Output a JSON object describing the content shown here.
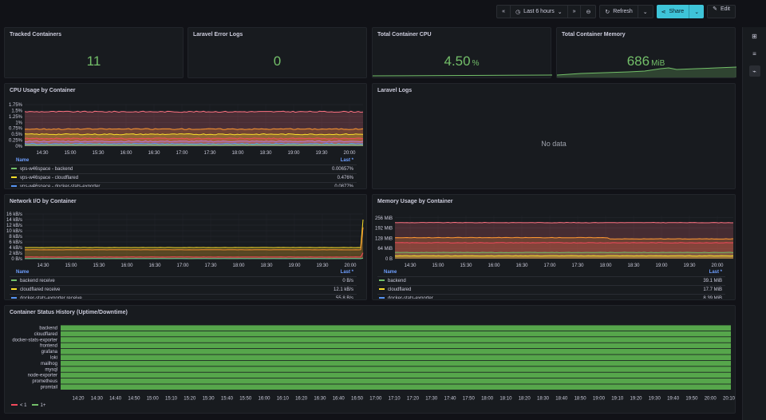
{
  "toolbar": {
    "time_range": "Last 6 hours",
    "refresh": "Refresh",
    "share": "Share",
    "edit": "Edit"
  },
  "stats": {
    "tracked": {
      "title": "Tracked Containers",
      "value": "11",
      "unit": ""
    },
    "errors": {
      "title": "Laravel Error Logs",
      "value": "0",
      "unit": ""
    },
    "cpu": {
      "title": "Total Container CPU",
      "value": "4.50",
      "unit": "%"
    },
    "memory": {
      "title": "Total Container Memory",
      "value": "686",
      "unit": "MiB"
    }
  },
  "panels": {
    "cpu_usage": {
      "title": "CPU Usage by Container",
      "legend_name": "Name",
      "legend_last": "Last *",
      "legend": [
        {
          "name": "vps-w46space - backend",
          "value": "0.00657%",
          "color": "#73bf69"
        },
        {
          "name": "vps-w46space - cloudflared",
          "value": "0.476%",
          "color": "#fade2a"
        },
        {
          "name": "vps-w46space - docker-stats-exporter",
          "value": "0.0877%",
          "color": "#5794f2"
        }
      ]
    },
    "laravel_logs": {
      "title": "Laravel Logs",
      "nodata": "No data"
    },
    "network": {
      "title": "Network I/O by Container",
      "legend_name": "Name",
      "legend_last": "Last *",
      "legend": [
        {
          "name": "backend receive",
          "value": "0 B/s",
          "color": "#73bf69"
        },
        {
          "name": "cloudflared receive",
          "value": "12.1 kB/s",
          "color": "#fade2a"
        },
        {
          "name": "docker-stats-exporter receive",
          "value": "55.8 B/s",
          "color": "#5794f2"
        }
      ]
    },
    "memory_usage": {
      "title": "Memory Usage by Container",
      "legend_name": "Name",
      "legend_last": "Last *",
      "legend": [
        {
          "name": "backend",
          "value": "39.1 MiB",
          "color": "#73bf69"
        },
        {
          "name": "cloudflared",
          "value": "17.7 MiB",
          "color": "#fade2a"
        },
        {
          "name": "docker-stats-exporter",
          "value": "8.39 MiB",
          "color": "#5794f2"
        }
      ]
    },
    "status_history": {
      "title": "Container Status History (Uptime/Downtime)",
      "legend_lt1": "< 1",
      "legend_ge1": "1+",
      "rows": [
        "backend",
        "cloudflared",
        "docker-stats-exporter",
        "frontend",
        "grafana",
        "loki",
        "mailhog",
        "mysql",
        "node-exporter",
        "prometheus",
        "promtail"
      ]
    }
  },
  "chart_data": [
    {
      "type": "line",
      "title": "CPU Usage by Container",
      "x": [
        "14:30",
        "15:00",
        "15:30",
        "16:00",
        "16:30",
        "17:00",
        "17:30",
        "18:00",
        "18:30",
        "19:00",
        "19:30",
        "20:00"
      ],
      "y_ticks": [
        "0%",
        "0.25%",
        "0.5%",
        "0.75%",
        "1%",
        "1.25%",
        "1.5%",
        "1.75%"
      ],
      "ylim": [
        0,
        1.75
      ],
      "series": [
        {
          "name": "vps-w46space - backend",
          "color": "#73bf69",
          "level": 0.05
        },
        {
          "name": "vps-w46space - cloudflared",
          "color": "#fade2a",
          "level": 0.5
        },
        {
          "name": "vps-w46space - docker-stats-exporter",
          "color": "#5794f2",
          "level": 0.1
        },
        {
          "color": "#ff7383",
          "level": 1.45
        },
        {
          "color": "#ff9830",
          "level": 0.72
        },
        {
          "color": "#f2495c",
          "level": 0.32
        },
        {
          "color": "#b877d9",
          "level": 0.2
        }
      ]
    },
    {
      "type": "line",
      "title": "Network I/O by Container",
      "x": [
        "14:30",
        "15:00",
        "15:30",
        "16:00",
        "16:30",
        "17:00",
        "17:30",
        "18:00",
        "18:30",
        "19:00",
        "19:30",
        "20:00"
      ],
      "y_ticks": [
        "0 B/s",
        "2 kB/s",
        "4 kB/s",
        "6 kB/s",
        "8 kB/s",
        "10 kB/s",
        "12 kB/s",
        "14 kB/s",
        "16 kB/s"
      ],
      "ylim": [
        0,
        16
      ],
      "series": [
        {
          "name": "backend receive",
          "color": "#73bf69",
          "level": 0.05
        },
        {
          "name": "cloudflared receive",
          "color": "#fade2a",
          "level": 4.0
        },
        {
          "name": "docker-stats-exporter receive",
          "color": "#5794f2",
          "level": 0.06
        },
        {
          "color": "#ff9830",
          "level": 3.2
        },
        {
          "color": "#f2495c",
          "level": 0.6
        }
      ]
    },
    {
      "type": "area",
      "title": "Memory Usage by Container",
      "x": [
        "14:30",
        "15:00",
        "15:30",
        "16:00",
        "16:30",
        "17:00",
        "17:30",
        "18:00",
        "18:30",
        "19:00",
        "19:30",
        "20:00"
      ],
      "y_ticks": [
        "0 B",
        "64 MiB",
        "128 MiB",
        "192 MiB",
        "256 MiB"
      ],
      "ylim": [
        0,
        270
      ],
      "series": [
        {
          "color": "#ff7383",
          "level": 226
        },
        {
          "color": "#ff9830",
          "level": 132
        },
        {
          "name": "backend",
          "color": "#73bf69",
          "level": 39
        },
        {
          "name": "cloudflared",
          "color": "#fade2a",
          "level": 18
        },
        {
          "color": "#f2495c",
          "level": 100
        }
      ]
    },
    {
      "type": "heatmap",
      "title": "Container Status History (Uptime/Downtime)",
      "x": [
        "14:20",
        "14:30",
        "14:40",
        "14:50",
        "15:00",
        "15:10",
        "15:20",
        "15:30",
        "15:40",
        "15:50",
        "16:00",
        "16:10",
        "16:20",
        "16:30",
        "16:40",
        "16:50",
        "17:00",
        "17:10",
        "17:20",
        "17:30",
        "17:40",
        "17:50",
        "18:00",
        "18:10",
        "18:20",
        "18:30",
        "18:40",
        "18:50",
        "19:00",
        "19:10",
        "19:20",
        "19:30",
        "19:40",
        "19:50",
        "20:00",
        "20:10"
      ],
      "categories": [
        "backend",
        "cloudflared",
        "docker-stats-exporter",
        "frontend",
        "grafana",
        "loki",
        "mailhog",
        "mysql",
        "node-exporter",
        "prometheus",
        "promtail"
      ],
      "status": "1+"
    }
  ],
  "colors": {
    "accent": "#3ec4d8",
    "stat_green": "#73bf69",
    "panel_bg": "#181b1f",
    "page_bg": "#111217"
  }
}
